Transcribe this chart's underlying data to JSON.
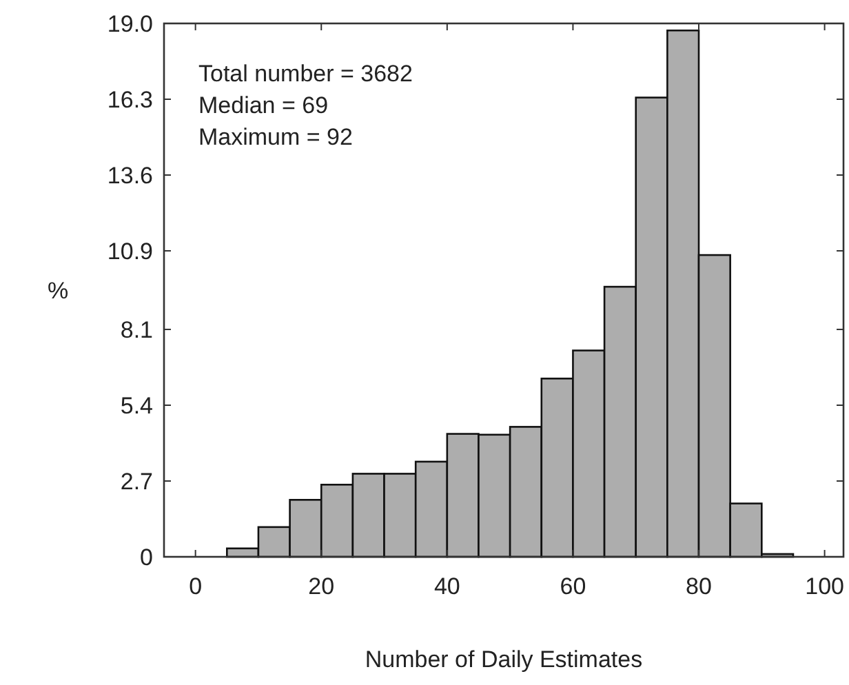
{
  "chart_data": {
    "type": "histogram",
    "xlabel": "Number of Daily Estimates",
    "ylabel": "%",
    "bins": [
      5,
      10,
      15,
      20,
      25,
      30,
      35,
      40,
      45,
      50,
      55,
      60,
      65,
      70,
      75,
      80,
      85,
      90,
      95
    ],
    "values": [
      0.3,
      1.06,
      2.03,
      2.57,
      2.96,
      2.96,
      3.39,
      4.38,
      4.35,
      4.63,
      6.35,
      7.35,
      9.62,
      16.36,
      18.75,
      10.75,
      1.9,
      0.1
    ],
    "color": "#adadad",
    "xlim": [
      -5,
      103
    ],
    "xticks": [
      0,
      20,
      40,
      60,
      80,
      100
    ],
    "ylim": [
      0,
      19
    ],
    "yticks": [
      0,
      2.7,
      5.4,
      8.1,
      10.9,
      13.6,
      16.3,
      {
        "value": 19,
        "label": "19.0"
      }
    ],
    "annotations": [
      "Total number = 3682",
      "Median = 69",
      "Maximum = 92"
    ],
    "grid": false
  }
}
